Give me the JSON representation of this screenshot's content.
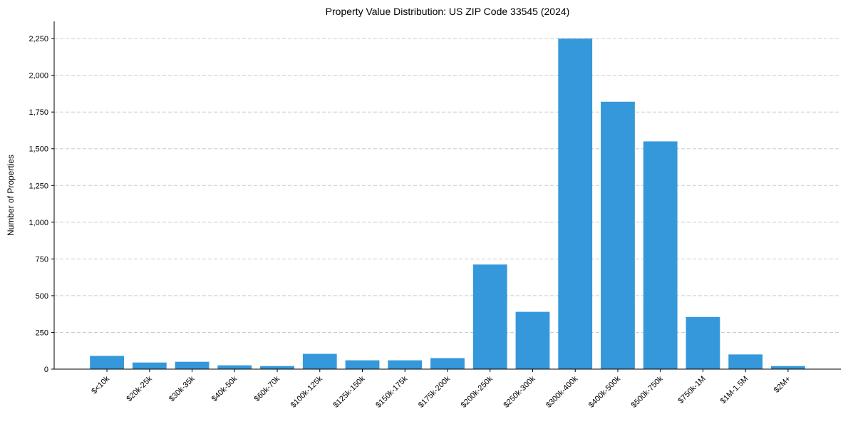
{
  "chart_data": {
    "type": "bar",
    "title": "Property Value Distribution: US ZIP Code 33545 (2024)",
    "xlabel": "",
    "ylabel": "Number of Properties",
    "categories": [
      "$<10k",
      "$20k-25k",
      "$30k-35k",
      "$40k-50k",
      "$60k-70k",
      "$100k-125k",
      "$125k-150k",
      "$150k-175k",
      "$175k-200k",
      "$200k-250k",
      "$250k-300k",
      "$300k-400k",
      "$400k-500k",
      "$500k-750k",
      "$750k-1M",
      "$1M-1.5M",
      "$2M+"
    ],
    "values": [
      90,
      45,
      50,
      26,
      21,
      104,
      60,
      60,
      75,
      712,
      390,
      2250,
      1820,
      1550,
      355,
      100,
      21
    ],
    "ylim": [
      0,
      2367
    ],
    "yticks": [
      0,
      250,
      500,
      750,
      1000,
      1250,
      1500,
      1750,
      2000,
      2250
    ],
    "ytick_labels": [
      "0",
      "250",
      "500",
      "750",
      "1,000",
      "1,250",
      "1,500",
      "1,750",
      "2,000",
      "2,250"
    ],
    "grid": "y-dashed",
    "bar_color": "#3498db"
  }
}
